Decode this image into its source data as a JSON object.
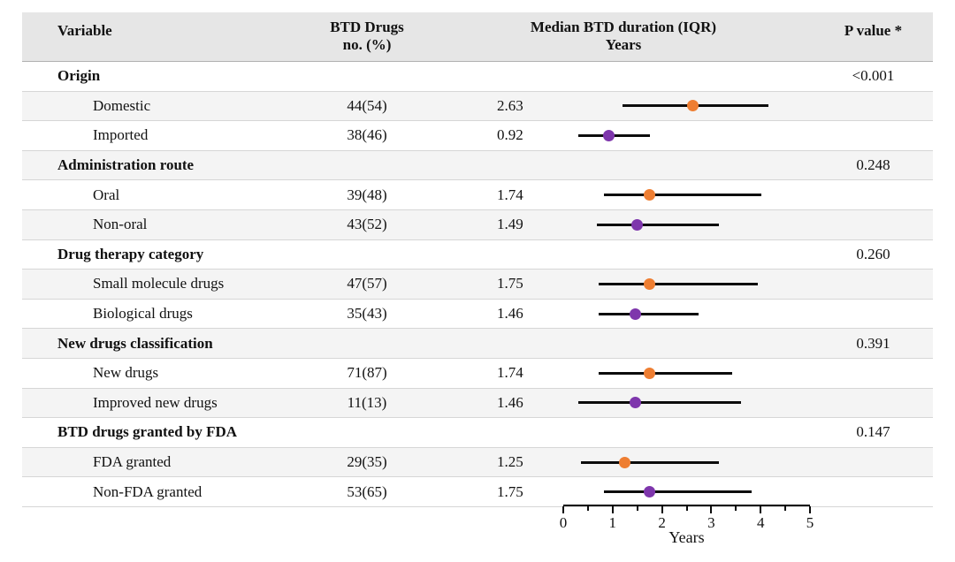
{
  "header": {
    "variable": "Variable",
    "btd_line1": "BTD Drugs",
    "btd_line2": "no. (%)",
    "duration_line1": "Median BTD duration (IQR)",
    "duration_line2": "Years",
    "p_value": "P value *"
  },
  "chart_data": {
    "type": "forest",
    "x_axis": {
      "label": "Years",
      "min": 0,
      "max": 5,
      "major_ticks": [
        0,
        1,
        2,
        3,
        4,
        5
      ],
      "minor_tick_step": 0.5
    },
    "marker_colors": {
      "orange": "#EE7E32",
      "purple": "#7E36AC"
    },
    "line_color": "#0c0c0c",
    "groups": [
      {
        "label": "Origin",
        "p_value": "<0.001",
        "items": [
          {
            "label": "Domestic",
            "n_pct": "44(54)",
            "median": 2.63,
            "median_label": "2.63",
            "q1": 1.2,
            "q3": 4.15,
            "color": "orange"
          },
          {
            "label": "Imported",
            "n_pct": "38(46)",
            "median": 0.92,
            "median_label": "0.92",
            "q1": 0.3,
            "q3": 1.75,
            "color": "purple"
          }
        ]
      },
      {
        "label": "Administration route",
        "p_value": "0.248",
        "items": [
          {
            "label": "Oral",
            "n_pct": "39(48)",
            "median": 1.74,
            "median_label": "1.74",
            "q1": 0.82,
            "q3": 4.02,
            "color": "orange"
          },
          {
            "label": "Non-oral",
            "n_pct": "43(52)",
            "median": 1.49,
            "median_label": "1.49",
            "q1": 0.68,
            "q3": 3.15,
            "color": "purple"
          }
        ]
      },
      {
        "label": "Drug therapy category",
        "p_value": "0.260",
        "items": [
          {
            "label": "Small molecule drugs",
            "n_pct": "47(57)",
            "median": 1.75,
            "median_label": "1.75",
            "q1": 0.72,
            "q3": 3.95,
            "color": "orange"
          },
          {
            "label": "Biological drugs",
            "n_pct": "35(43)",
            "median": 1.46,
            "median_label": "1.46",
            "q1": 0.72,
            "q3": 2.75,
            "color": "purple"
          }
        ]
      },
      {
        "label": "New drugs classification",
        "p_value": "0.391",
        "items": [
          {
            "label": "New drugs",
            "n_pct": "71(87)",
            "median": 1.74,
            "median_label": "1.74",
            "q1": 0.72,
            "q3": 3.43,
            "color": "orange"
          },
          {
            "label": "Improved new drugs",
            "n_pct": "11(13)",
            "median": 1.46,
            "median_label": "1.46",
            "q1": 0.31,
            "q3": 3.6,
            "color": "purple"
          }
        ]
      },
      {
        "label": "BTD drugs granted by FDA",
        "p_value": "0.147",
        "items": [
          {
            "label": "FDA granted",
            "n_pct": "29(35)",
            "median": 1.25,
            "median_label": "1.25",
            "q1": 0.35,
            "q3": 3.15,
            "color": "orange"
          },
          {
            "label": "Non-FDA granted",
            "n_pct": "53(65)",
            "median": 1.75,
            "median_label": "1.75",
            "q1": 0.82,
            "q3": 3.82,
            "color": "purple"
          }
        ]
      }
    ]
  }
}
